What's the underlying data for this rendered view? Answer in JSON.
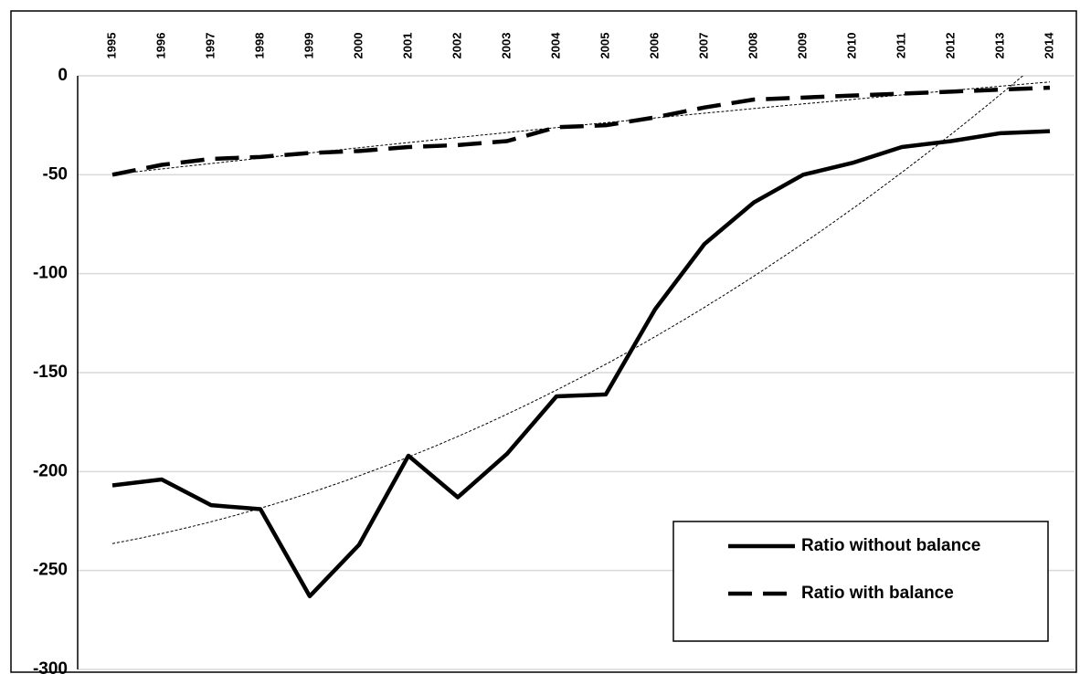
{
  "chart_data": {
    "type": "line",
    "categories": [
      "1995",
      "1996",
      "1997",
      "1998",
      "1999",
      "2000",
      "2001",
      "2002",
      "2003",
      "2004",
      "2005",
      "2006",
      "2007",
      "2008",
      "2009",
      "2010",
      "2011",
      "2012",
      "2013",
      "2014"
    ],
    "series": [
      {
        "name": "Ratio without balance",
        "color": "#000000",
        "line_style": "solid",
        "values": [
          -207,
          -204,
          -217,
          -219,
          -263,
          -237,
          -192,
          -213,
          -191,
          -162,
          -161,
          -118,
          -85,
          -64,
          -50,
          -44,
          -36,
          -33,
          -29,
          -28
        ]
      },
      {
        "name": "Ratio with balance",
        "color": "#000000",
        "line_style": "dashed",
        "values": [
          -50,
          -45,
          -42,
          -41,
          -39,
          -38,
          -36,
          -35,
          -33,
          -26,
          -25,
          -21,
          -16,
          -12,
          -11,
          -10,
          -9,
          -8,
          -7,
          -6
        ]
      }
    ],
    "trendline": "polynomial",
    "trendline_order": 2,
    "ylim": [
      -300,
      0
    ],
    "yticks": [
      0,
      -50,
      -100,
      -150,
      -200,
      -250,
      -300
    ],
    "grid": true,
    "legend": "lower right"
  }
}
